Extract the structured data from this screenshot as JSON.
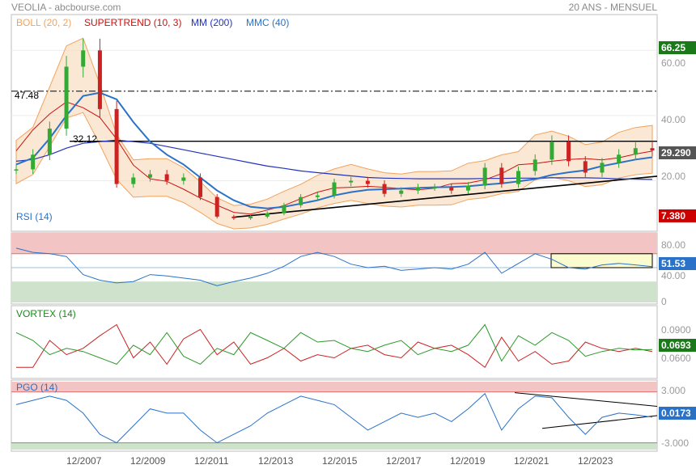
{
  "header": {
    "title": "VEOLIA - abcbourse.com",
    "period": "20 ANS - MENSUEL"
  },
  "colors": {
    "boll": "#f2a25a",
    "supertrend": "#cc1111",
    "mm200": "#2233bb",
    "mmc40": "#2a72c8",
    "candle_up": "#33aa33",
    "candle_down": "#cc2222",
    "price_tag": "#555555",
    "last_tag_main": "#1a7a1a",
    "low_tag": "#cc0000",
    "rsi_zone_high": "#f3c4c4",
    "rsi_zone_low": "#cfe3cc",
    "rsi_line": "#2a72c8",
    "vortex_plus": "#2a9a2a",
    "vortex_minus": "#cc2222",
    "pgo_line": "#2a72c8"
  },
  "main": {
    "legend": [
      {
        "label": "BOLL (20, 2)",
        "color": "#f2a25a"
      },
      {
        "label": "SUPERTREND (10, 3)",
        "color": "#cc1111"
      },
      {
        "label": "MM (200)",
        "color": "#2233bb"
      },
      {
        "label": "MMC (40)",
        "color": "#2a72c8"
      }
    ],
    "price_labels": [
      "47.48",
      "32.12"
    ],
    "axis_ticks": [
      "60.00",
      "40.00",
      "20.00"
    ],
    "tags": {
      "top": "66.25",
      "last": "29.290",
      "bottom": "7.380"
    }
  },
  "rsi": {
    "label": "RSI (14)",
    "ticks": [
      "80.00",
      "40.00",
      "0"
    ],
    "last": "51.53"
  },
  "vortex": {
    "label": "VORTEX (14)",
    "ticks": [
      "0.0900",
      "0.0600"
    ],
    "last": "0.0693"
  },
  "pgo": {
    "label": "PGO (14)",
    "ticks": [
      "3.000",
      "-3.000"
    ],
    "last": "0.0173"
  },
  "x_axis": [
    "12/2007",
    "12/2009",
    "12/2011",
    "12/2013",
    "12/2015",
    "12/2017",
    "12/2019",
    "12/2021",
    "12/2023"
  ],
  "chart_data": {
    "type": "line",
    "title": "VEOLIA",
    "x": [
      "2004-12",
      "2005-12",
      "2006-12",
      "2007-06",
      "2007-12",
      "2008-06",
      "2008-12",
      "2009-06",
      "2009-12",
      "2010-06",
      "2010-12",
      "2011-06",
      "2011-12",
      "2012-06",
      "2012-12",
      "2013-06",
      "2013-12",
      "2014-06",
      "2014-12",
      "2015-06",
      "2015-12",
      "2016-06",
      "2016-12",
      "2017-06",
      "2017-12",
      "2018-06",
      "2018-12",
      "2019-06",
      "2019-12",
      "2020-06",
      "2020-12",
      "2021-06",
      "2021-12",
      "2022-06",
      "2022-12",
      "2023-06",
      "2023-12",
      "2024-06",
      "2024-10"
    ],
    "series": [
      {
        "name": "VEOLIA",
        "values": [
          23.5,
          28,
          36,
          55,
          60,
          42,
          19,
          21,
          22,
          20,
          21,
          15,
          9,
          8.5,
          9,
          10,
          12.5,
          15,
          15.5,
          19.5,
          20,
          19,
          16,
          17,
          18,
          18,
          17,
          18.5,
          24,
          19,
          23,
          26.5,
          32,
          26,
          22.5,
          25.5,
          28,
          30,
          29.29
        ]
      },
      {
        "name": "MM (200)",
        "values": [
          26,
          26.5,
          28,
          30,
          31.5,
          32,
          32.5,
          32,
          31.5,
          30.5,
          29.5,
          28.5,
          27.5,
          26.5,
          25.5,
          24.5,
          23.8,
          23,
          22.5,
          22,
          21.5,
          21,
          20.8,
          20.7,
          20.6,
          20.6,
          20.6,
          20.6,
          20.7,
          20.7,
          20.8,
          20.8,
          20.9,
          20.9,
          20.9,
          20.8,
          20.6,
          20.5,
          20.4
        ]
      },
      {
        "name": "MMC (40)",
        "values": [
          25,
          27,
          33,
          40,
          46,
          47,
          45,
          38,
          32,
          28,
          25,
          21,
          17,
          14,
          12,
          11.5,
          12,
          13,
          14,
          15.5,
          16.5,
          17.2,
          17.4,
          17.6,
          17.8,
          18,
          18.1,
          18.3,
          18.8,
          19.2,
          19.8,
          20.5,
          21.8,
          22.6,
          23.2,
          24.5,
          25.5,
          26.5,
          27.2
        ]
      }
    ],
    "ylim": [
      5,
      70
    ],
    "rsi_14": [
      78,
      72,
      70,
      66,
      40,
      32,
      28,
      30,
      40,
      38,
      35,
      32,
      24,
      30,
      35,
      42,
      52,
      66,
      72,
      66,
      55,
      50,
      52,
      46,
      48,
      50,
      48,
      55,
      72,
      42,
      56,
      70,
      62,
      50,
      48,
      54,
      56,
      54,
      51.53
    ],
    "vortex_14_plus": [
      0.08,
      0.075,
      0.066,
      0.07,
      0.068,
      0.064,
      0.06,
      0.072,
      0.066,
      0.08,
      0.065,
      0.06,
      0.07,
      0.066,
      0.08,
      0.075,
      0.07,
      0.08,
      0.074,
      0.075,
      0.07,
      0.068,
      0.072,
      0.075,
      0.066,
      0.07,
      0.068,
      0.072,
      0.085,
      0.062,
      0.078,
      0.072,
      0.08,
      0.075,
      0.065,
      0.068,
      0.07,
      0.069,
      0.0693
    ],
    "vortex_14_minus": [
      0.058,
      0.058,
      0.075,
      0.066,
      0.07,
      0.078,
      0.085,
      0.064,
      0.074,
      0.06,
      0.076,
      0.082,
      0.066,
      0.074,
      0.06,
      0.064,
      0.07,
      0.062,
      0.066,
      0.064,
      0.07,
      0.072,
      0.066,
      0.064,
      0.074,
      0.07,
      0.072,
      0.066,
      0.058,
      0.077,
      0.062,
      0.068,
      0.06,
      0.062,
      0.074,
      0.07,
      0.068,
      0.07,
      0.068
    ],
    "pgo_14": [
      1.5,
      2,
      2.5,
      2,
      0.5,
      -2,
      -3,
      -1,
      1,
      0.5,
      0.5,
      -1.5,
      -3,
      -2,
      -1,
      0.5,
      1.5,
      2.5,
      2,
      1.5,
      0,
      -1.5,
      -0.5,
      0.5,
      0,
      0.5,
      -0.5,
      1,
      2.8,
      -1.5,
      1,
      2.5,
      2.3,
      0,
      -2,
      0,
      0.5,
      0.3,
      0.0173
    ],
    "rsi_ylim": [
      0,
      100
    ],
    "vortex_ylim": [
      0.052,
      0.096
    ],
    "pgo_ylim": [
      -3.8,
      4.2
    ]
  }
}
